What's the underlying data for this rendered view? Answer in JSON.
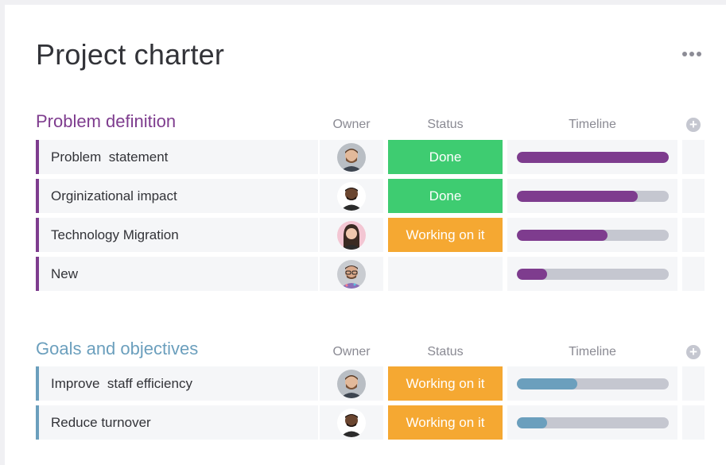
{
  "page": {
    "title": "Project charter"
  },
  "columns": {
    "owner": "Owner",
    "status": "Status",
    "timeline": "Timeline"
  },
  "colors": {
    "done": "#3ecc71",
    "working": "#f5a832",
    "group1_accent": "#7e3c8e",
    "group2_accent": "#6b9fbd",
    "group1_bar": "#7e3c8e",
    "group2_bar": "#6b9fbd"
  },
  "groups": [
    {
      "title": "Problem definition",
      "rows": [
        {
          "name": "Problem  statement",
          "status": "Done",
          "status_kind": "done",
          "timeline_progress": 1.0,
          "owner": "avatar-man-beard"
        },
        {
          "name": "Orginizational impact",
          "status": "Done",
          "status_kind": "done",
          "timeline_progress": 0.8,
          "owner": "avatar-man-dark"
        },
        {
          "name": "Technology Migration",
          "status": "Working on it",
          "status_kind": "working",
          "timeline_progress": 0.6,
          "owner": "avatar-woman"
        },
        {
          "name": "New",
          "status": "",
          "status_kind": "empty",
          "timeline_progress": 0.2,
          "owner": "avatar-man-glasses"
        }
      ]
    },
    {
      "title": "Goals and objectives",
      "rows": [
        {
          "name": "Improve  staff efficiency",
          "status": "Working on it",
          "status_kind": "working",
          "timeline_progress": 0.4,
          "owner": "avatar-man-beard"
        },
        {
          "name": "Reduce turnover",
          "status": "Working on it",
          "status_kind": "working",
          "timeline_progress": 0.2,
          "owner": "avatar-man-dark"
        }
      ]
    }
  ]
}
